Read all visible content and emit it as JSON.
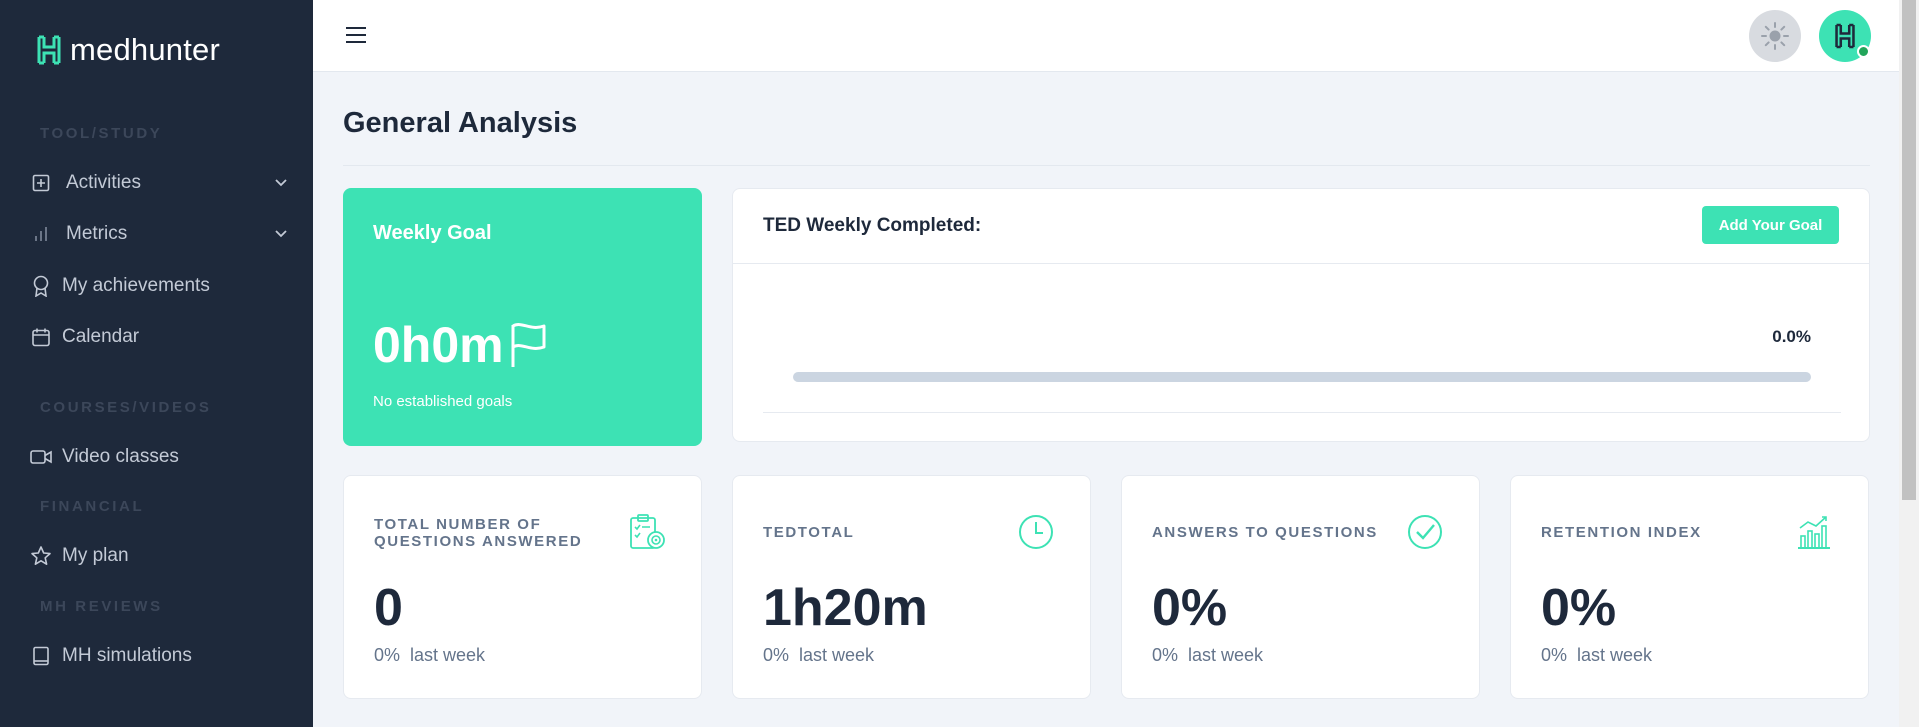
{
  "brand": {
    "name": "medhunter",
    "accent": "#3de2b4",
    "sidebar_bg": "#1e293b"
  },
  "sidebar": {
    "sections": [
      {
        "label": "TOOL/STUDY"
      },
      {
        "label": "COURSES/VIDEOS"
      },
      {
        "label": "FINANCIAL"
      },
      {
        "label": "MH REVIEWS"
      }
    ],
    "items": [
      {
        "label": "Activities",
        "icon": "plus-square-icon",
        "expandable": true
      },
      {
        "label": "Metrics",
        "icon": "bar-chart-icon",
        "expandable": true
      },
      {
        "label": "My achievements",
        "icon": "award-icon"
      },
      {
        "label": "Calendar",
        "icon": "calendar-icon"
      },
      {
        "label": "Video classes",
        "icon": "video-icon"
      },
      {
        "label": "My plan",
        "icon": "star-icon"
      },
      {
        "label": "MH simulations",
        "icon": "book-icon"
      }
    ]
  },
  "main": {
    "title": "General Analysis",
    "weekly_goal": {
      "title": "Weekly Goal",
      "value": "0h0m",
      "subtitle": "No established goals"
    },
    "ted_weekly": {
      "title": "TED Weekly Completed:",
      "button": "Add Your Goal",
      "percent_label": "0.0%",
      "progress": 0.0
    },
    "stats": [
      {
        "label_line1": "TOTAL NUMBER OF",
        "label_line2": "QUESTIONS ANSWERED",
        "value": "0",
        "trend_pct": "0%",
        "trend_text": "last week",
        "icon": "clipboard-target-icon"
      },
      {
        "label_line1": "TEDTOTAL",
        "label_line2": "",
        "value": "1h20m",
        "trend_pct": "0%",
        "trend_text": "last week",
        "icon": "clock-icon"
      },
      {
        "label_line1": "ANSWERS TO QUESTIONS",
        "label_line2": "",
        "value": "0%",
        "trend_pct": "0%",
        "trend_text": "last week",
        "icon": "check-circle-icon"
      },
      {
        "label_line1": "RETENTION INDEX",
        "label_line2": "",
        "value": "0%",
        "trend_pct": "0%",
        "trend_text": "last week",
        "icon": "growth-chart-icon"
      }
    ]
  }
}
